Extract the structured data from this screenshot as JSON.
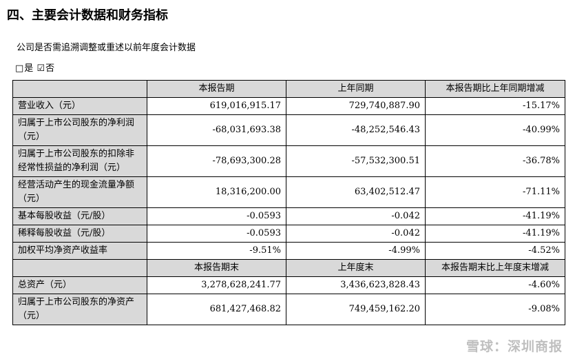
{
  "heading": "四、主要会计数据和财务指标",
  "question": "公司是否需追溯调整或重述以前年度会计数据",
  "answer": {
    "yes_box": "□",
    "yes_label": "是",
    "no_box": "☑",
    "no_label": "否"
  },
  "table": {
    "header1": [
      "",
      "本报告期",
      "上年同期",
      "本报告期比上年同期增减"
    ],
    "rows1": [
      {
        "label": "营业收入（元）",
        "v1": "619,016,915.17",
        "v2": "729,740,887.90",
        "v3": "-15.17%"
      },
      {
        "label": "归属于上市公司股东的净利润（元）",
        "v1": "-68,031,693.38",
        "v2": "-48,252,546.43",
        "v3": "-40.99%"
      },
      {
        "label": "归属于上市公司股东的扣除非经常性损益的净利润（元）",
        "v1": "-78,693,300.28",
        "v2": "-57,532,300.51",
        "v3": "-36.78%"
      },
      {
        "label": "经营活动产生的现金流量净额（元）",
        "v1": "18,316,200.00",
        "v2": "63,402,512.47",
        "v3": "-71.11%"
      },
      {
        "label": "基本每股收益（元/股）",
        "v1": "-0.0593",
        "v2": "-0.042",
        "v3": "-41.19%"
      },
      {
        "label": "稀释每股收益（元/股）",
        "v1": "-0.0593",
        "v2": "-0.042",
        "v3": "-41.19%"
      },
      {
        "label": "加权平均净资产收益率",
        "v1": "-9.51%",
        "v2": "-4.99%",
        "v3": "-4.52%"
      }
    ],
    "header2": [
      "",
      "本报告期末",
      "上年度末",
      "本报告期末比上年度末增减"
    ],
    "rows2": [
      {
        "label": "总资产（元）",
        "v1": "3,278,628,241.77",
        "v2": "3,436,623,828.43",
        "v3": "-4.60%"
      },
      {
        "label": "归属于上市公司股东的净资产（元）",
        "v1": "681,427,468.82",
        "v2": "749,459,162.20",
        "v3": "-9.08%"
      }
    ]
  },
  "watermark": "雪球：深圳商报"
}
